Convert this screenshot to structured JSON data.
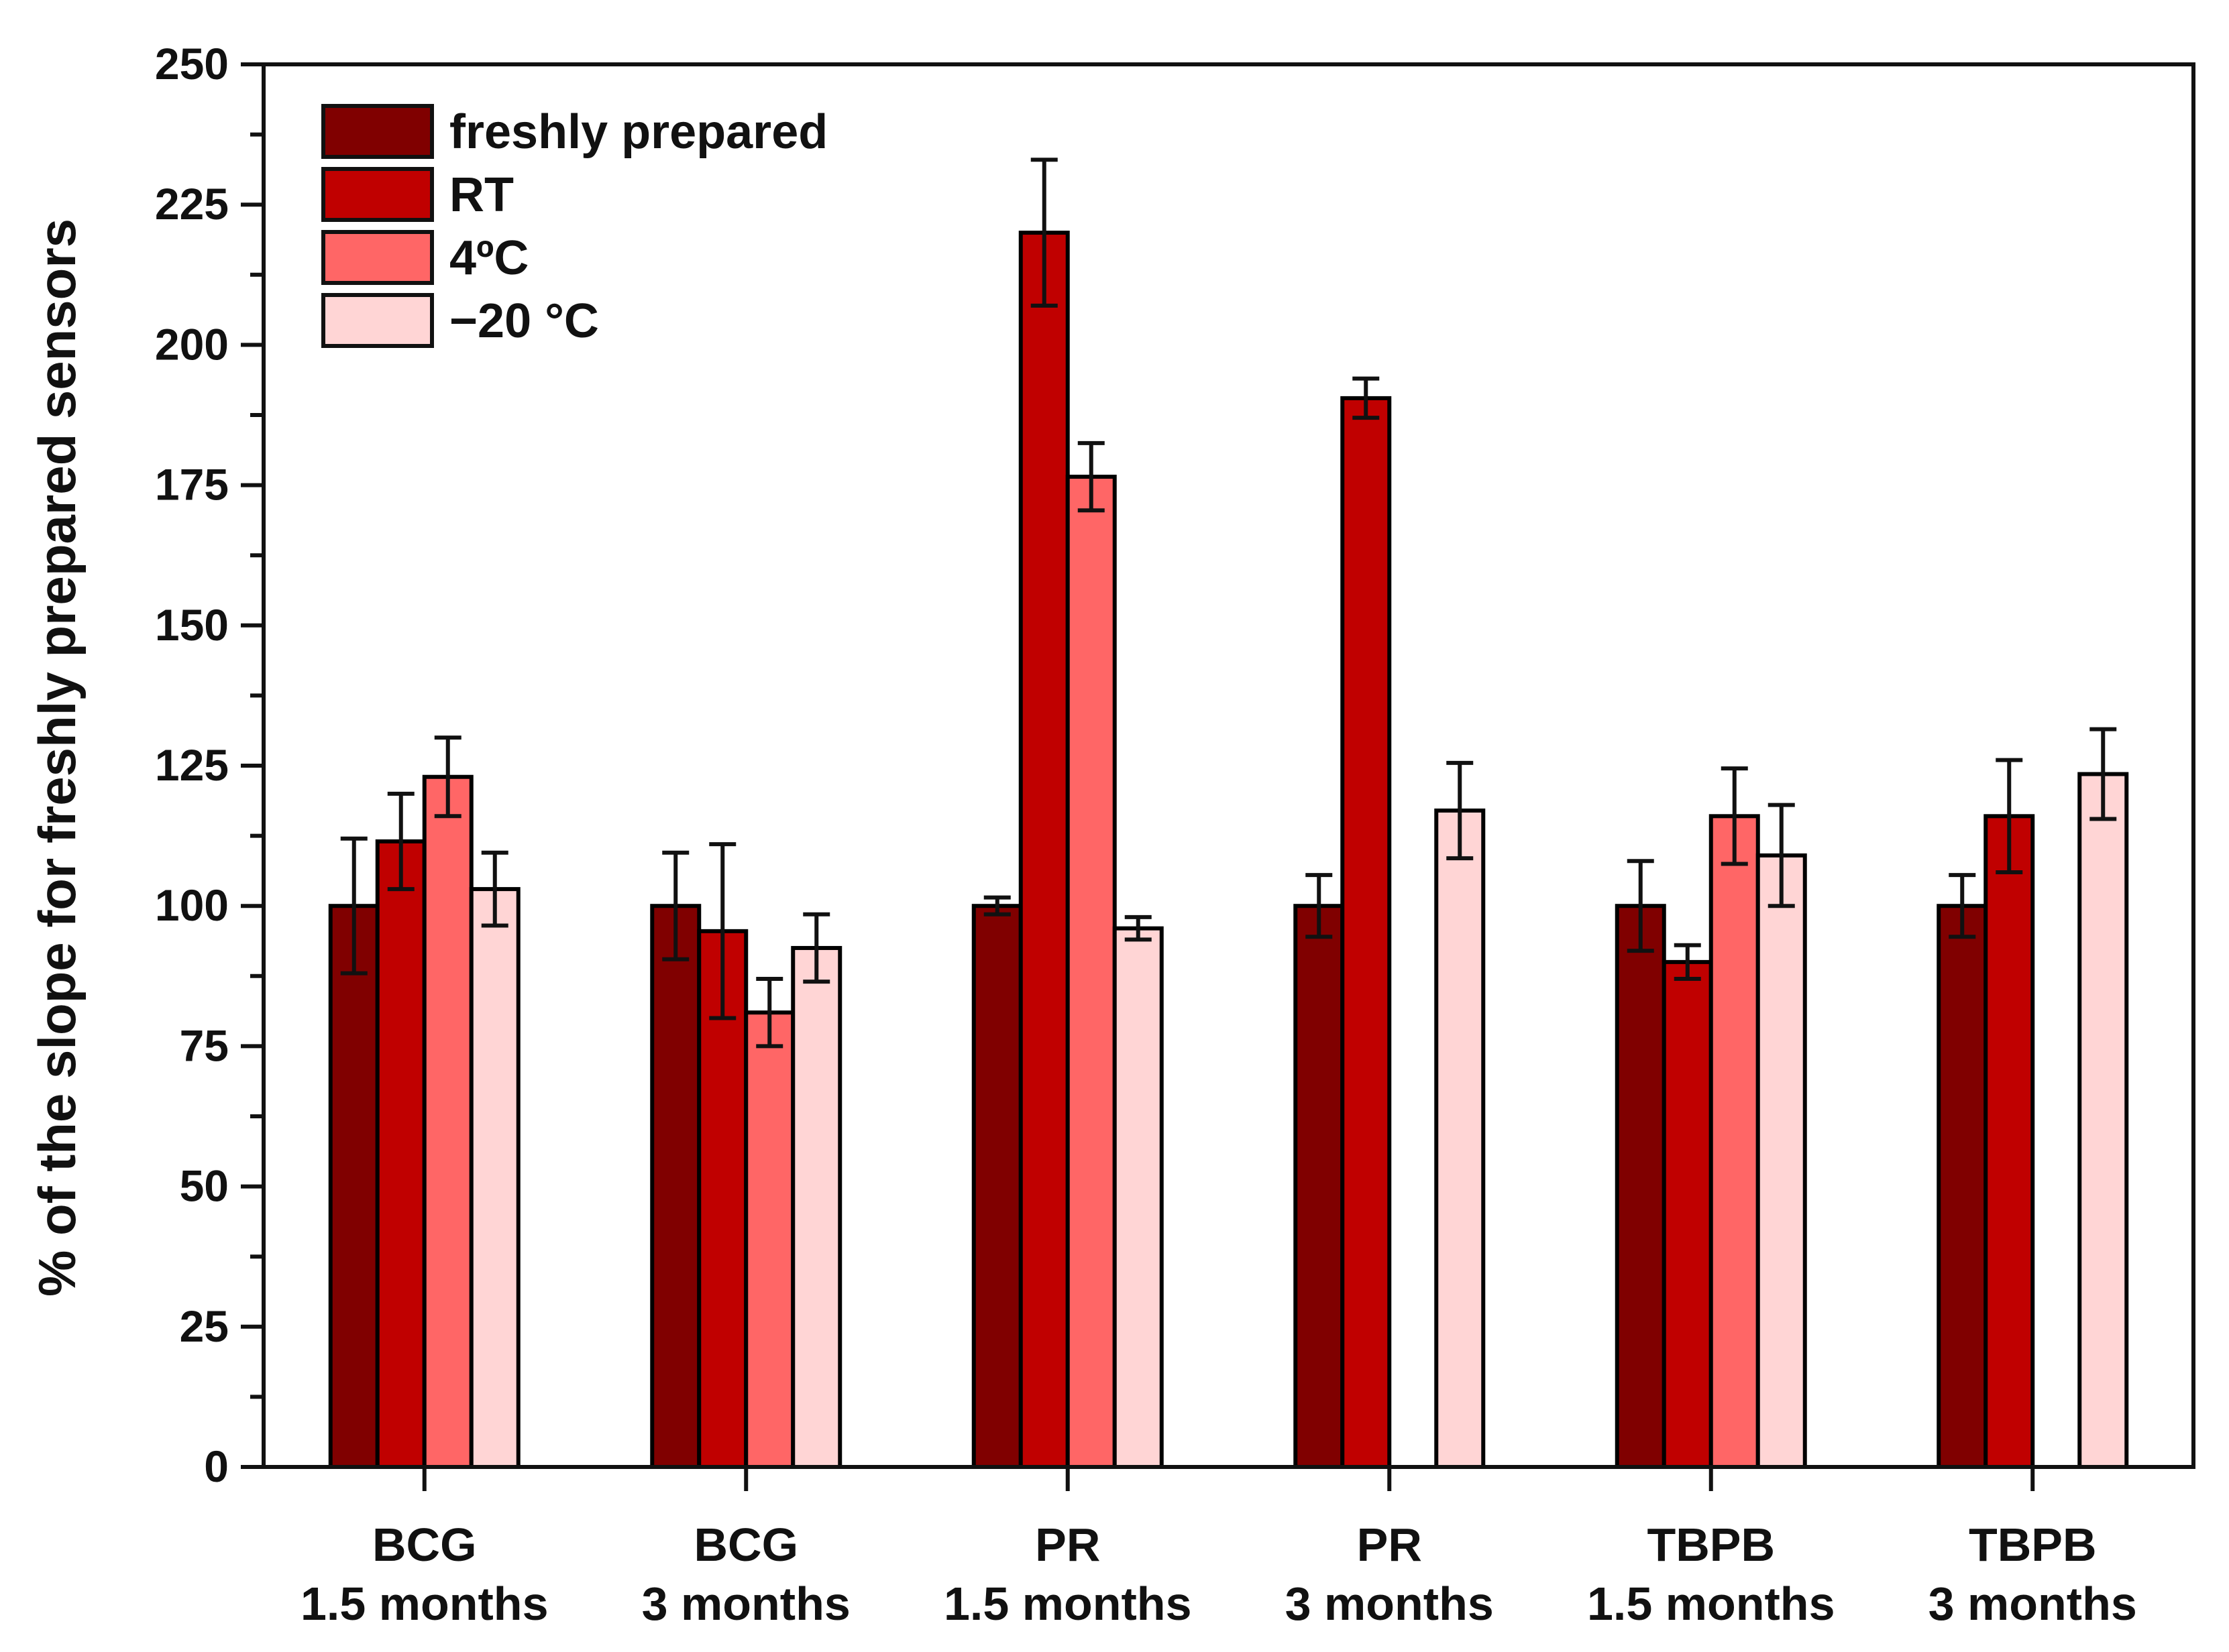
{
  "chart_data": {
    "type": "bar",
    "title": "",
    "xlabel": "",
    "ylabel": "% of the slope for freshly prepared sensors",
    "ylim": [
      0,
      250
    ],
    "yticks": [
      0,
      25,
      50,
      75,
      100,
      125,
      150,
      175,
      200,
      225,
      250
    ],
    "legend_position": "top-left",
    "grid": false,
    "categories": [
      [
        "BCG",
        "1.5 months"
      ],
      [
        "BCG",
        "3 months"
      ],
      [
        "PR",
        "1.5 months"
      ],
      [
        "PR",
        "3 months"
      ],
      [
        "TBPB",
        "1.5 months"
      ],
      [
        "TBPB",
        "3 months"
      ]
    ],
    "series": [
      {
        "name": "freshly prepared",
        "color": "#800000",
        "values": [
          100,
          100,
          100,
          100,
          100,
          100
        ],
        "errors": [
          12,
          9.5,
          1.5,
          5.5,
          8,
          5.5
        ]
      },
      {
        "name": "RT",
        "color": "#C00000",
        "values": [
          111.5,
          95.5,
          220,
          190.5,
          90,
          116
        ],
        "errors": [
          8.5,
          15.5,
          13,
          3.5,
          3,
          10
        ]
      },
      {
        "name": "4ºC",
        "color": "#FF6666",
        "values": [
          123,
          81,
          176.5,
          null,
          116,
          null
        ],
        "errors": [
          7,
          6,
          6,
          null,
          8.5,
          null
        ]
      },
      {
        "name": "−20 °C",
        "color": "#FFD5D5",
        "values": [
          103,
          92.5,
          96,
          117,
          109,
          123.5
        ],
        "errors": [
          6.5,
          6,
          2,
          8.5,
          9,
          8
        ]
      }
    ]
  }
}
